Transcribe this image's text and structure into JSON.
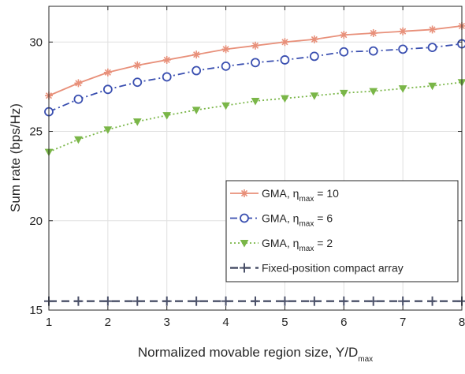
{
  "chart_data": {
    "type": "line",
    "title": "",
    "xlabel": "Normalized movable region size, Y/D",
    "xlabel_sub": "max",
    "ylabel": "Sum rate (bps/Hz)",
    "xlim": [
      1,
      8
    ],
    "ylim": [
      15,
      32
    ],
    "xticks": [
      "1",
      "2",
      "3",
      "4",
      "5",
      "6",
      "7",
      "8"
    ],
    "yticks": [
      "15",
      "20",
      "25",
      "30"
    ],
    "grid": true,
    "legend_position": "bottom-right",
    "x": [
      1,
      1.5,
      2,
      2.5,
      3,
      3.5,
      4,
      4.5,
      5,
      5.5,
      6,
      6.5,
      7,
      7.5,
      8
    ],
    "series": [
      {
        "name": "GMA, η",
        "name_sub": "max",
        "name_suffix": " = 10",
        "color": "#e8907a",
        "marker": "asterisk",
        "dash": "solid",
        "values": [
          27.0,
          27.7,
          28.3,
          28.7,
          29.0,
          29.3,
          29.6,
          29.8,
          30.0,
          30.15,
          30.4,
          30.5,
          30.6,
          30.7,
          30.9
        ]
      },
      {
        "name": "GMA, η",
        "name_sub": "max",
        "name_suffix": " = 6",
        "color": "#3a4fb0",
        "marker": "circle",
        "dash": "dashdot",
        "values": [
          26.1,
          26.8,
          27.35,
          27.75,
          28.05,
          28.4,
          28.65,
          28.85,
          29.0,
          29.2,
          29.45,
          29.5,
          29.6,
          29.7,
          29.9
        ]
      },
      {
        "name": "GMA, η",
        "name_sub": "max",
        "name_suffix": " = 2",
        "color": "#7ab648",
        "marker": "triangle-down",
        "dash": "dotted",
        "values": [
          23.85,
          24.55,
          25.1,
          25.55,
          25.9,
          26.2,
          26.45,
          26.7,
          26.85,
          27.0,
          27.15,
          27.25,
          27.4,
          27.55,
          27.75
        ]
      },
      {
        "name": "Fixed-position compact array",
        "name_sub": "",
        "name_suffix": "",
        "color": "#4a5068",
        "marker": "plus",
        "dash": "dashed",
        "values": [
          15.5,
          15.5,
          15.5,
          15.5,
          15.5,
          15.5,
          15.5,
          15.5,
          15.5,
          15.5,
          15.5,
          15.5,
          15.5,
          15.5,
          15.5
        ]
      }
    ]
  }
}
